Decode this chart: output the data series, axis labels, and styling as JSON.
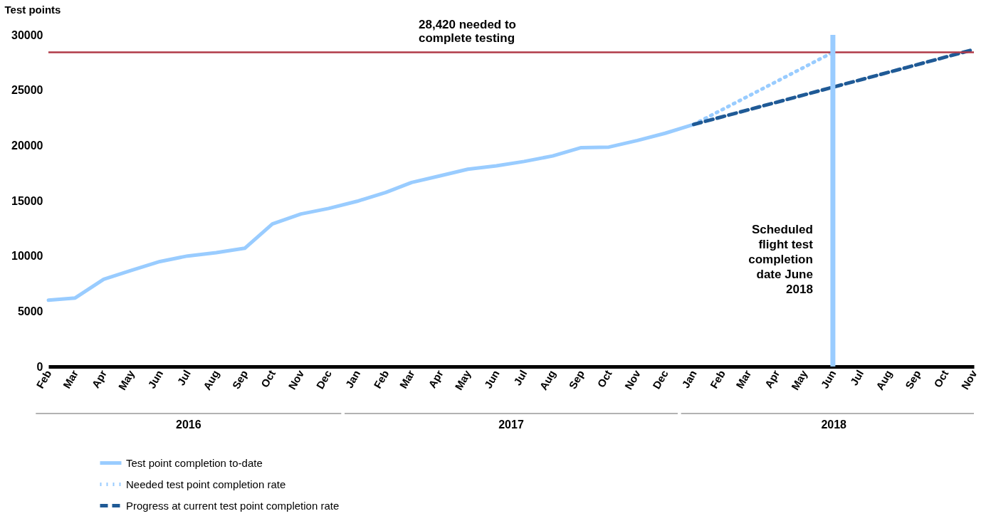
{
  "chart_data": {
    "type": "line",
    "ylabel": "Test points",
    "x": [
      "2016-02",
      "2016-03",
      "2016-04",
      "2016-05",
      "2016-06",
      "2016-07",
      "2016-08",
      "2016-09",
      "2016-10",
      "2016-11",
      "2016-12",
      "2017-01",
      "2017-02",
      "2017-03",
      "2017-04",
      "2017-05",
      "2017-06",
      "2017-07",
      "2017-08",
      "2017-09",
      "2017-10",
      "2017-11",
      "2017-12",
      "2018-01"
    ],
    "series": [
      {
        "name": "Test point completion to-date",
        "color": "#99ccff",
        "line_style": "solid",
        "values": [
          6000,
          6200,
          7900,
          8700,
          9500,
          10000,
          10300,
          10700,
          12900,
          13800,
          14300,
          14950,
          15750,
          16650,
          17250,
          17850,
          18150,
          18550,
          19050,
          19800,
          19850,
          20450,
          21100,
          21900
        ]
      },
      {
        "name": "Needed test point completion rate",
        "color": "#99ccff",
        "line_style": "dotted",
        "x": [
          "2018-01",
          "2018-06"
        ],
        "values": [
          21900,
          28420
        ]
      },
      {
        "name": "Progress at current test point completion rate",
        "color": "#1f5a96",
        "line_style": "dashed",
        "x": [
          "2018-01",
          "2018-11"
        ],
        "values": [
          21900,
          28680
        ]
      }
    ],
    "xlim": [
      "2016-02",
      "2018-11"
    ],
    "xticks": [
      {
        "value": "2016-02",
        "label": "Feb"
      },
      {
        "value": "2016-03",
        "label": "Mar"
      },
      {
        "value": "2016-04",
        "label": "Apr"
      },
      {
        "value": "2016-05",
        "label": "May"
      },
      {
        "value": "2016-06",
        "label": "Jun"
      },
      {
        "value": "2016-07",
        "label": "Jul"
      },
      {
        "value": "2016-08",
        "label": "Aug"
      },
      {
        "value": "2016-09",
        "label": "Sep"
      },
      {
        "value": "2016-10",
        "label": "Oct"
      },
      {
        "value": "2016-11",
        "label": "Nov"
      },
      {
        "value": "2016-12",
        "label": "Dec"
      },
      {
        "value": "2017-01",
        "label": "Jan"
      },
      {
        "value": "2017-02",
        "label": "Feb"
      },
      {
        "value": "2017-03",
        "label": "Mar"
      },
      {
        "value": "2017-04",
        "label": "Apr"
      },
      {
        "value": "2017-05",
        "label": "May"
      },
      {
        "value": "2017-06",
        "label": "Jun"
      },
      {
        "value": "2017-07",
        "label": "Jul"
      },
      {
        "value": "2017-08",
        "label": "Aug"
      },
      {
        "value": "2017-09",
        "label": "Sep"
      },
      {
        "value": "2017-10",
        "label": "Oct"
      },
      {
        "value": "2017-11",
        "label": "Nov"
      },
      {
        "value": "2017-12",
        "label": "Dec"
      },
      {
        "value": "2018-01",
        "label": "Jan"
      },
      {
        "value": "2018-02",
        "label": "Feb"
      },
      {
        "value": "2018-03",
        "label": "Mar"
      },
      {
        "value": "2018-04",
        "label": "Apr"
      },
      {
        "value": "2018-05",
        "label": "May"
      },
      {
        "value": "2018-06",
        "label": "Jun"
      },
      {
        "value": "2018-07",
        "label": "Jul"
      },
      {
        "value": "2018-08",
        "label": "Aug"
      },
      {
        "value": "2018-09",
        "label": "Sep"
      },
      {
        "value": "2018-10",
        "label": "Oct"
      },
      {
        "value": "2018-11",
        "label": "Nov"
      }
    ],
    "ylim": [
      0,
      30000
    ],
    "yticks": [
      0,
      5000,
      10000,
      15000,
      20000,
      25000,
      30000
    ],
    "ref_lines": [
      {
        "axis": "y",
        "value": 28420,
        "label": "28,420 needed to\ncomplete testing",
        "color": "#b03a48"
      },
      {
        "axis": "x",
        "value": "2018-06",
        "label": "Scheduled\nflight test\ncompletion\ndate June\n2018",
        "color": "#99ccff"
      }
    ],
    "annotations": [
      "2016",
      "2017",
      "2018"
    ],
    "legend": "bottom left",
    "marker": "none"
  }
}
